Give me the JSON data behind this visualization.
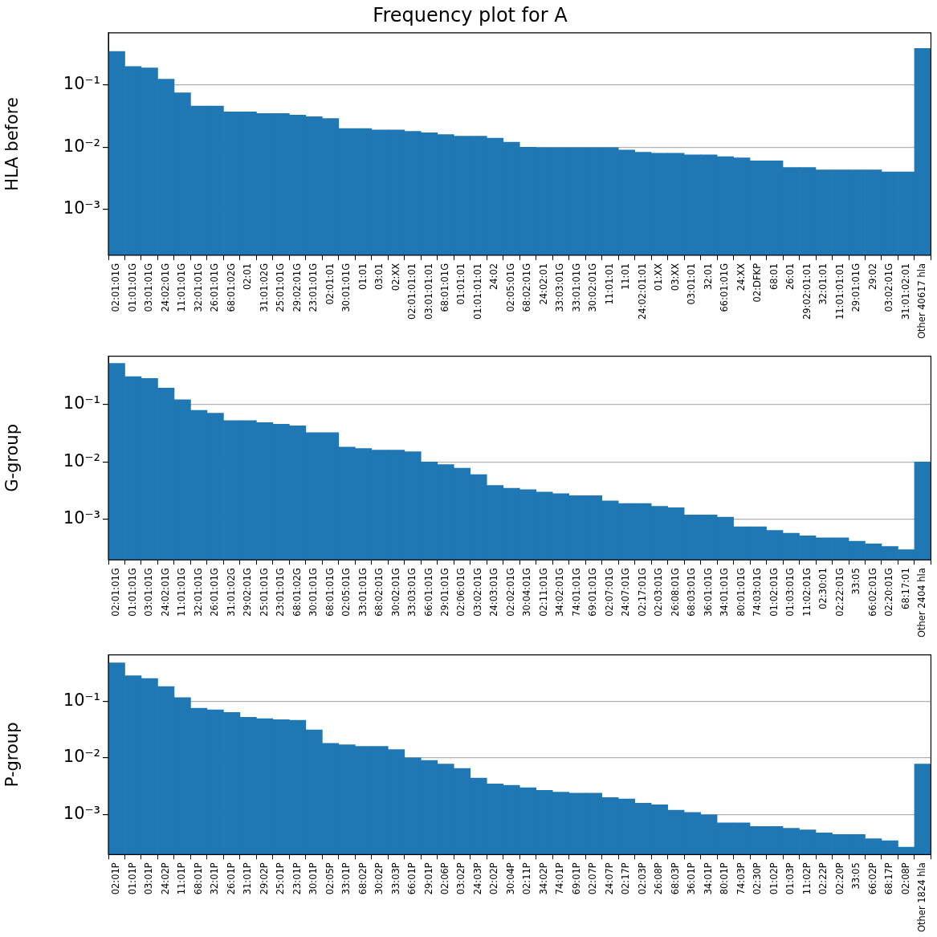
{
  "chart_data": [
    {
      "type": "bar",
      "title": "Frequency plot for A",
      "ylabel": "HLA before",
      "log": true,
      "grid": "y",
      "color": "#1f77b4",
      "ylim": [
        0.00018,
        0.7
      ],
      "yticks": [
        {
          "value": 0.001,
          "label": "10⁻³"
        },
        {
          "value": 0.01,
          "label": "10⁻²"
        },
        {
          "value": 0.1,
          "label": "10⁻¹"
        }
      ],
      "categories": [
        "02:01:01G",
        "01:01:01G",
        "03:01:01G",
        "24:02:01G",
        "11:01:01G",
        "32:01:01G",
        "26:01:01G",
        "68:01:02G",
        "02:01",
        "31:01:02G",
        "25:01:01G",
        "29:02:01G",
        "23:01:01G",
        "02:01:01",
        "30:01:01G",
        "01:01",
        "03:01",
        "02:XX",
        "02:01:01:01",
        "03:01:01:01",
        "68:01:01G",
        "01:01:01",
        "01:01:01:01",
        "24:02",
        "02:05:01G",
        "68:02:01G",
        "24:02:01",
        "33:03:01G",
        "33:01:01G",
        "30:02:01G",
        "11:01:01",
        "11:01",
        "24:02:01:01",
        "01:XX",
        "03:XX",
        "03:01:01",
        "32:01",
        "66:01:01G",
        "24:XX",
        "02:DFKP",
        "68:01",
        "26:01",
        "29:02:01:01",
        "32:01:01",
        "11:01:01:01",
        "29:01:01G",
        "29:02",
        "03:02:01G",
        "31:01:02:01",
        "Other 40617 hla"
      ],
      "values": [
        0.35,
        0.2,
        0.19,
        0.125,
        0.075,
        0.046,
        0.046,
        0.037,
        0.037,
        0.035,
        0.035,
        0.033,
        0.031,
        0.029,
        0.02,
        0.02,
        0.019,
        0.019,
        0.018,
        0.017,
        0.016,
        0.015,
        0.015,
        0.014,
        0.012,
        0.01,
        0.0098,
        0.0098,
        0.0098,
        0.0098,
        0.0098,
        0.009,
        0.0083,
        0.008,
        0.008,
        0.0075,
        0.0075,
        0.007,
        0.0067,
        0.006,
        0.006,
        0.0047,
        0.0047,
        0.0043,
        0.0043,
        0.0043,
        0.0043,
        0.004,
        0.004,
        0.39
      ]
    },
    {
      "type": "bar",
      "ylabel": "G-group",
      "log": true,
      "grid": "y",
      "color": "#1f77b4",
      "ylim": [
        0.0002,
        0.68
      ],
      "yticks": [
        {
          "value": 0.001,
          "label": "10⁻³"
        },
        {
          "value": 0.01,
          "label": "10⁻²"
        },
        {
          "value": 0.1,
          "label": "10⁻¹"
        }
      ],
      "categories": [
        "02:01:01G",
        "01:01:01G",
        "03:01:01G",
        "24:02:01G",
        "11:01:01G",
        "32:01:01G",
        "26:01:01G",
        "31:01:02G",
        "29:02:01G",
        "25:01:01G",
        "23:01:01G",
        "68:01:02G",
        "30:01:01G",
        "68:01:01G",
        "02:05:01G",
        "33:01:01G",
        "68:02:01G",
        "30:02:01G",
        "33:03:01G",
        "66:01:01G",
        "29:01:01G",
        "02:06:01G",
        "03:02:01G",
        "24:03:01G",
        "02:02:01G",
        "30:04:01G",
        "02:11:01G",
        "34:02:01G",
        "74:01:01G",
        "69:01:01G",
        "02:07:01G",
        "24:07:01G",
        "02:17:01G",
        "02:03:01G",
        "26:08:01G",
        "68:03:01G",
        "36:01:01G",
        "34:01:01G",
        "80:01:01G",
        "74:03:01G",
        "01:02:01G",
        "01:03:01G",
        "11:02:01G",
        "02:30:01",
        "02:22:01G",
        "33:05",
        "66:02:01G",
        "02:20:01G",
        "68:17:01",
        "Other 2404 hla"
      ],
      "values": [
        0.51,
        0.3,
        0.28,
        0.19,
        0.12,
        0.078,
        0.07,
        0.052,
        0.052,
        0.048,
        0.045,
        0.042,
        0.032,
        0.032,
        0.018,
        0.017,
        0.016,
        0.016,
        0.015,
        0.01,
        0.009,
        0.0078,
        0.006,
        0.0039,
        0.0035,
        0.0033,
        0.003,
        0.0028,
        0.0026,
        0.0026,
        0.0021,
        0.0019,
        0.0019,
        0.0017,
        0.0016,
        0.0012,
        0.0012,
        0.0011,
        0.00075,
        0.00075,
        0.00065,
        0.00058,
        0.00052,
        0.00048,
        0.00048,
        0.00042,
        0.00038,
        0.00034,
        0.0003,
        0.01
      ]
    },
    {
      "type": "bar",
      "ylabel": "P-group",
      "log": true,
      "grid": "y",
      "color": "#1f77b4",
      "ylim": [
        0.0002,
        0.65
      ],
      "yticks": [
        {
          "value": 0.001,
          "label": "10⁻³"
        },
        {
          "value": 0.01,
          "label": "10⁻²"
        },
        {
          "value": 0.1,
          "label": "10⁻¹"
        }
      ],
      "categories": [
        "02:01P",
        "01:01P",
        "03:01P",
        "24:02P",
        "11:01P",
        "68:01P",
        "32:01P",
        "26:01P",
        "31:01P",
        "29:02P",
        "25:01P",
        "23:01P",
        "30:01P",
        "02:05P",
        "33:01P",
        "68:02P",
        "30:02P",
        "33:03P",
        "66:01P",
        "29:01P",
        "02:06P",
        "03:02P",
        "24:03P",
        "02:02P",
        "30:04P",
        "02:11P",
        "34:02P",
        "74:01P",
        "69:01P",
        "02:07P",
        "24:07P",
        "02:17P",
        "02:03P",
        "26:08P",
        "68:03P",
        "36:01P",
        "34:01P",
        "80:01P",
        "74:03P",
        "02:30P",
        "01:02P",
        "01:03P",
        "11:02P",
        "02:22P",
        "02:20P",
        "33:05",
        "66:02P",
        "68:17P",
        "02:08P",
        "Other 1824 hla"
      ],
      "values": [
        0.47,
        0.28,
        0.25,
        0.18,
        0.115,
        0.075,
        0.07,
        0.063,
        0.052,
        0.049,
        0.047,
        0.046,
        0.031,
        0.018,
        0.017,
        0.016,
        0.016,
        0.014,
        0.01,
        0.009,
        0.0078,
        0.0065,
        0.0044,
        0.0035,
        0.0033,
        0.003,
        0.0027,
        0.0025,
        0.0024,
        0.0024,
        0.002,
        0.0019,
        0.0016,
        0.0015,
        0.0012,
        0.0011,
        0.001,
        0.00072,
        0.00072,
        0.00062,
        0.00062,
        0.00058,
        0.00054,
        0.00048,
        0.00045,
        0.00045,
        0.00038,
        0.00035,
        0.00027,
        0.0078
      ]
    }
  ]
}
